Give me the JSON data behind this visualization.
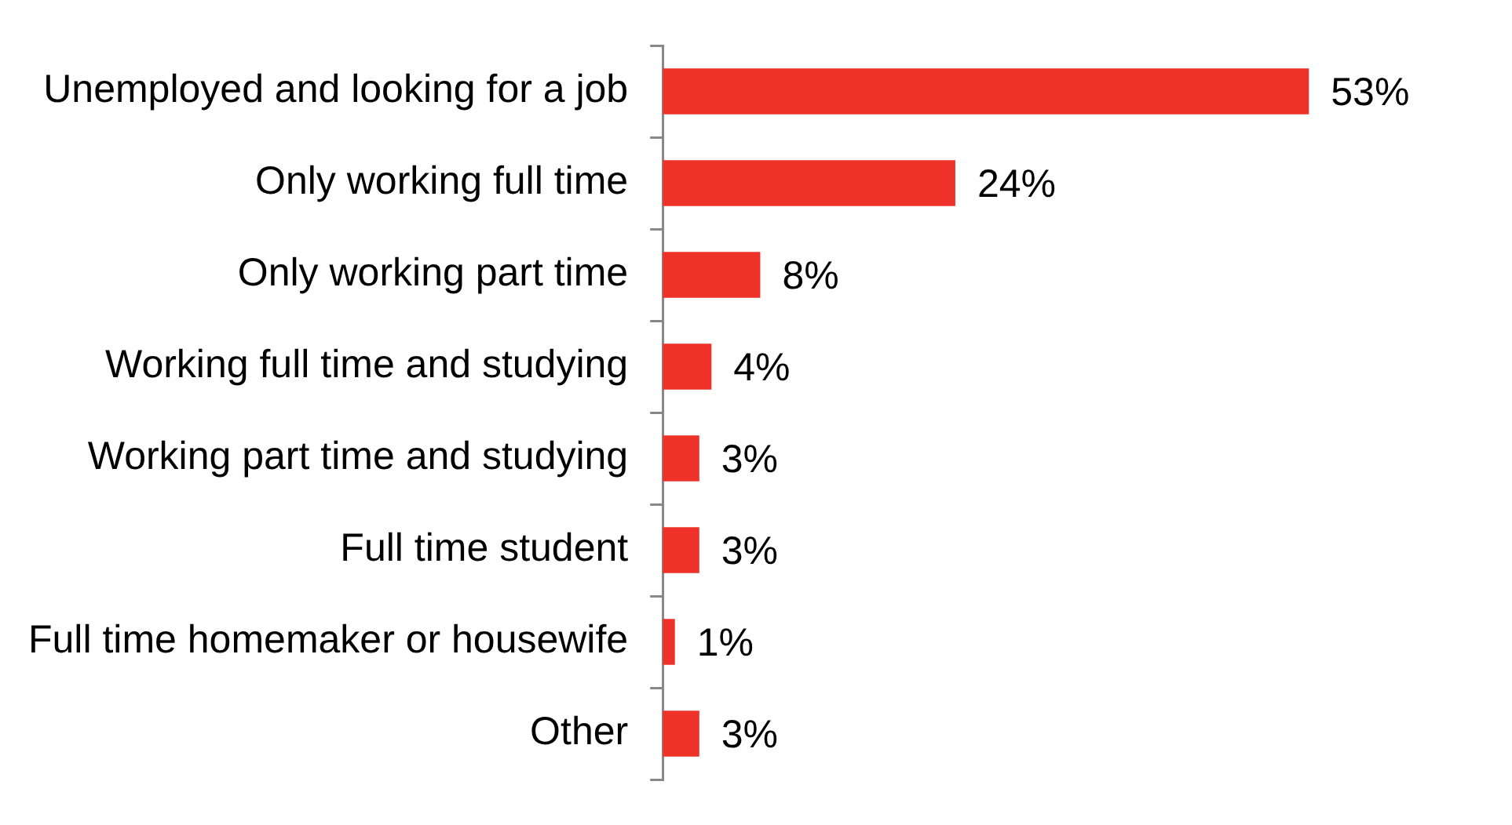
{
  "chart_data": {
    "type": "bar",
    "orientation": "horizontal",
    "tick_labels": "y",
    "color": "#ee3129",
    "categories": [
      "Unemployed and looking for a job",
      "Only working full time",
      "Only working part time",
      "Working full time and studying",
      "Working part time and studying",
      "Full time student",
      "Full time homemaker or housewife",
      "Other"
    ],
    "values": [
      53,
      24,
      8,
      4,
      3,
      3,
      1,
      3
    ],
    "value_labels": [
      "53%",
      "24%",
      "8%",
      "4%",
      "3%",
      "3%",
      "1%",
      "3%"
    ]
  }
}
